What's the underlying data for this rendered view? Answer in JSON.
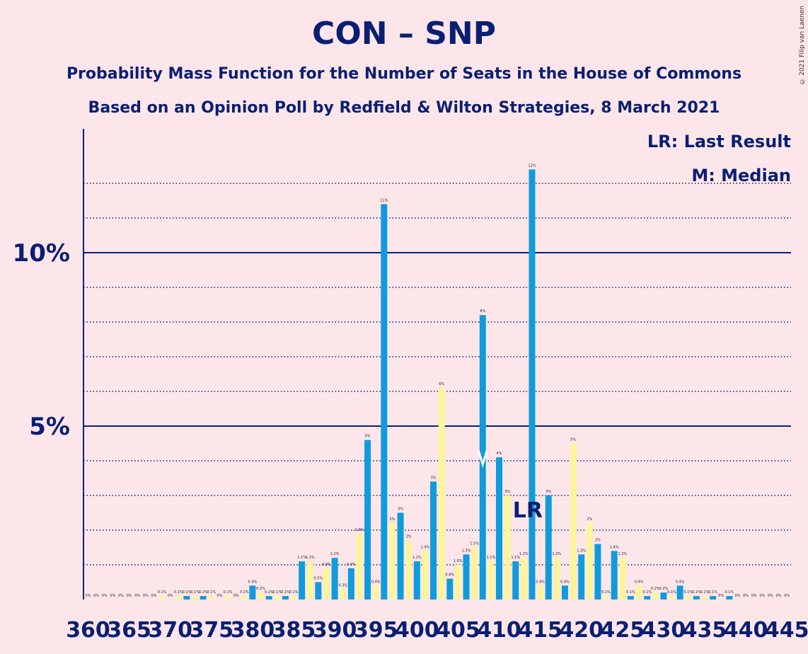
{
  "title": "CON – SNP",
  "subtitle1": "Probability Mass Function for the Number of Seats in the House of Commons",
  "subtitle2": "Based on an Opinion Poll by Redfield & Wilton Strategies, 8 March 2021",
  "copyright": "© 2021 Filip van Laenen",
  "legend": {
    "last_result": "LR: Last Result",
    "median": "M: Median"
  },
  "colors": {
    "background": "#fde6ea",
    "con_bar": "#0f9bdc",
    "snp_bar": "#fdf59c",
    "axis": "#0a1f72"
  },
  "chart_data": {
    "type": "bar",
    "title": "CON – SNP",
    "xlabel": "",
    "ylabel": "",
    "ylim": [
      0,
      13.5
    ],
    "y_ticks": [
      {
        "value": 5,
        "label": "5%"
      },
      {
        "value": 10,
        "label": "10%"
      }
    ],
    "x_tick_labels": [
      "360",
      "365",
      "370",
      "375",
      "380",
      "385",
      "390",
      "395",
      "400",
      "405",
      "410",
      "415",
      "420",
      "425",
      "430",
      "435",
      "440",
      "445"
    ],
    "x": [
      360,
      361,
      362,
      363,
      364,
      365,
      366,
      367,
      368,
      369,
      370,
      371,
      372,
      373,
      374,
      375,
      376,
      377,
      378,
      379,
      380,
      381,
      382,
      383,
      384,
      385,
      386,
      387,
      388,
      389,
      390,
      391,
      392,
      393,
      394,
      395,
      396,
      397,
      398,
      399,
      400,
      401,
      402,
      403,
      404,
      405,
      406,
      407,
      408,
      409,
      410,
      411,
      412,
      413,
      414,
      415,
      416,
      417,
      418,
      419,
      420,
      421,
      422,
      423,
      424,
      425,
      426,
      427,
      428,
      429,
      430,
      431,
      432,
      433,
      434,
      435,
      436,
      437,
      438,
      439,
      440,
      441,
      442,
      443,
      444,
      445
    ],
    "values": [
      0,
      0,
      0,
      0,
      0,
      0,
      0,
      0,
      0,
      0.1,
      0,
      0.1,
      0.1,
      0.1,
      0.1,
      0.1,
      0,
      0.1,
      0,
      0.1,
      0.4,
      0.2,
      0.1,
      0.1,
      0.1,
      0.1,
      1.1,
      1.1,
      0.5,
      0.9,
      1.2,
      0.3,
      0.9,
      1.9,
      4.6,
      0.4,
      11.4,
      2.2,
      2.5,
      1.7,
      1.1,
      1.4,
      3.4,
      6.1,
      0.6,
      1.0,
      1.3,
      1.5,
      8.2,
      1.1,
      4.1,
      3.0,
      1.1,
      1.2,
      12.4,
      0.4,
      3.0,
      1.2,
      0.4,
      4.5,
      1.3,
      2.2,
      1.6,
      0.1,
      1.4,
      1.2,
      0.1,
      0.4,
      0.1,
      0.2,
      0.2,
      0.1,
      0.4,
      0.1,
      0.1,
      0.1,
      0.1,
      0,
      0.1,
      0,
      0,
      0,
      0,
      0,
      0,
      0
    ],
    "value_labels": [
      "0%",
      "0%",
      "0%",
      "0%",
      "0%",
      "0%",
      "0%",
      "0%",
      "0%",
      "0.1%",
      "0%",
      "0.1%",
      "0.1%",
      "0.1%",
      "0.1%",
      "0.1%",
      "0%",
      "0.1%",
      "0%",
      "0.1%",
      "0.4%",
      "0.2%",
      "0.1%",
      "0.1%",
      "0.1%",
      "0.1%",
      "1.1%",
      "1.1%",
      "0.5%",
      "0.9%",
      "1.2%",
      "0.3%",
      "0.9%",
      "1.9%",
      "5%",
      "0.4%",
      "11%",
      "2%",
      "3%",
      "2%",
      "1.1%",
      "1.4%",
      "3%",
      "6%",
      "0.6%",
      "1.0%",
      "1.3%",
      "1.5%",
      "8%",
      "1.1%",
      "4%",
      "3%",
      "1.1%",
      "1.2%",
      "12%",
      "0.4%",
      "3%",
      "1.2%",
      "0.4%",
      "5%",
      "1.3%",
      "2%",
      "2%",
      "0.1%",
      "1.4%",
      "1.2%",
      "0.1%",
      "0.4%",
      "0.1%",
      "0.2%",
      "0.2%",
      "0.1%",
      "0.4%",
      "0.1%",
      "0.1%",
      "0.1%",
      "0.1%",
      "0%",
      "0.1%",
      "0%",
      "0%",
      "0%",
      "0%",
      "0%",
      "0%",
      "0%"
    ],
    "last_result_label": "LR",
    "last_result_seat": 412,
    "median_seat": 408,
    "grid": true
  }
}
